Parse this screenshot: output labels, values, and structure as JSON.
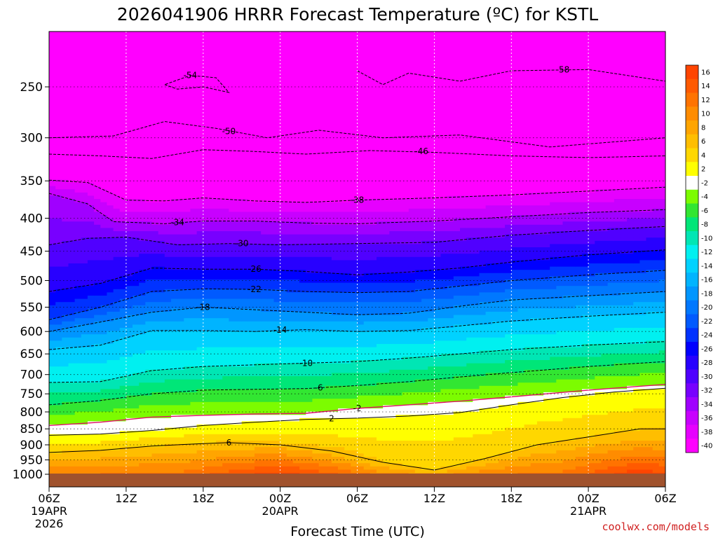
{
  "chart_data": {
    "type": "heatmap",
    "title": "2026041906 HRRR Forecast Temperature (ºC) for KSTL",
    "xlabel": "Forecast Time (UTC)",
    "ylabel": "",
    "credit": "coolwx.com/models",
    "y_scale": "log",
    "y_inverted": true,
    "y_range": [
      1025,
      201
    ],
    "y_ticks": [
      250,
      300,
      350,
      400,
      450,
      500,
      550,
      600,
      650,
      700,
      750,
      800,
      850,
      900,
      950,
      1000
    ],
    "x_range": [
      "2026-04-19 06Z",
      "2026-04-21 06Z"
    ],
    "x_ticks": [
      {
        "l1": "06Z",
        "l2": "19APR",
        "l3": "2026"
      },
      {
        "l1": "12Z",
        "l2": "",
        "l3": ""
      },
      {
        "l1": "18Z",
        "l2": "",
        "l3": ""
      },
      {
        "l1": "00Z",
        "l2": "20APR",
        "l3": ""
      },
      {
        "l1": "06Z",
        "l2": "",
        "l3": ""
      },
      {
        "l1": "12Z",
        "l2": "",
        "l3": ""
      },
      {
        "l1": "18Z",
        "l2": "",
        "l3": ""
      },
      {
        "l1": "00Z",
        "l2": "21APR",
        "l3": ""
      },
      {
        "l1": "06Z",
        "l2": "",
        "l3": ""
      }
    ],
    "grid": true,
    "legend": "colorbar-right",
    "colorbar": {
      "labels": [
        "16",
        "14",
        "12",
        "10",
        "8",
        "6",
        "4",
        "2",
        "-2",
        "-4",
        "-6",
        "-8",
        "-10",
        "-12",
        "-14",
        "-16",
        "-18",
        "-20",
        "-22",
        "-24",
        "-26",
        "-28",
        "-30",
        "-32",
        "-34",
        "-36",
        "-38",
        "-40"
      ],
      "colors": [
        "#ff4500",
        "#ff5a00",
        "#ff7300",
        "#ff8c00",
        "#ffa500",
        "#ffbe00",
        "#ffd700",
        "#ffff00",
        "#ffffff",
        "#7cfc00",
        "#32e632",
        "#00e678",
        "#00e6b4",
        "#00f0f0",
        "#00d2ff",
        "#00b4ff",
        "#0096ff",
        "#0078ff",
        "#005aff",
        "#0032ff",
        "#0000ff",
        "#2800ff",
        "#5000ff",
        "#7800ff",
        "#a000ff",
        "#c800ff",
        "#e600ff",
        "#ff00ff"
      ]
    },
    "isotherms": [
      {
        "label": "-58",
        "points": [
          [
            24,
            236
          ],
          [
            26,
            248
          ],
          [
            28,
            238
          ],
          [
            32,
            245
          ],
          [
            36,
            236
          ],
          [
            42,
            235
          ],
          [
            48,
            245
          ]
        ],
        "label_at": [
          40,
          235
        ]
      },
      {
        "label": "-54",
        "points": [
          [
            9,
            248
          ],
          [
            10,
            252
          ],
          [
            12,
            250
          ],
          [
            14,
            255
          ],
          [
            13,
            242
          ],
          [
            11,
            240
          ],
          [
            9,
            248
          ]
        ],
        "label_at": [
          11,
          240
        ]
      },
      {
        "label": "-50",
        "points": [
          [
            0,
            300
          ],
          [
            5,
            298
          ],
          [
            9,
            283
          ],
          [
            13,
            290
          ],
          [
            17,
            300
          ],
          [
            21,
            292
          ],
          [
            26,
            300
          ],
          [
            32,
            297
          ],
          [
            39,
            310
          ],
          [
            48,
            300
          ]
        ],
        "label_at": [
          14,
          293
        ]
      },
      {
        "label": "-46",
        "points": [
          [
            0,
            318
          ],
          [
            4,
            320
          ],
          [
            8,
            323
          ],
          [
            12,
            313
          ],
          [
            16,
            315
          ],
          [
            20,
            318
          ],
          [
            25,
            314
          ],
          [
            30,
            316
          ],
          [
            36,
            320
          ],
          [
            42,
            322
          ],
          [
            48,
            320
          ]
        ],
        "label_at": [
          29,
          315
        ]
      },
      {
        "label": "-38",
        "points": [
          [
            0,
            349
          ],
          [
            3,
            352
          ],
          [
            6,
            375
          ],
          [
            9,
            376
          ],
          [
            12,
            372
          ],
          [
            16,
            376
          ],
          [
            20,
            378
          ],
          [
            24,
            375
          ],
          [
            30,
            372
          ],
          [
            36,
            368
          ],
          [
            42,
            363
          ],
          [
            48,
            358
          ]
        ],
        "label_at": [
          24,
          375
        ]
      },
      {
        "label": "-34",
        "points": [
          [
            0,
            366
          ],
          [
            3,
            380
          ],
          [
            5,
            405
          ],
          [
            9,
            408
          ],
          [
            12,
            404
          ],
          [
            16,
            404
          ],
          [
            20,
            407
          ],
          [
            24,
            408
          ],
          [
            30,
            404
          ],
          [
            36,
            398
          ],
          [
            42,
            392
          ],
          [
            48,
            388
          ]
        ],
        "label_at": [
          10,
          406
        ]
      },
      {
        "label": "-30",
        "points": [
          [
            0,
            440
          ],
          [
            3,
            430
          ],
          [
            6,
            428
          ],
          [
            10,
            440
          ],
          [
            14,
            438
          ],
          [
            18,
            440
          ],
          [
            24,
            438
          ],
          [
            30,
            436
          ],
          [
            36,
            425
          ],
          [
            42,
            418
          ],
          [
            48,
            412
          ]
        ],
        "label_at": [
          15,
          438
        ]
      },
      {
        "label": "-26",
        "points": [
          [
            0,
            520
          ],
          [
            4,
            505
          ],
          [
            8,
            478
          ],
          [
            12,
            480
          ],
          [
            16,
            480
          ],
          [
            20,
            484
          ],
          [
            24,
            490
          ],
          [
            28,
            485
          ],
          [
            32,
            478
          ],
          [
            36,
            468
          ],
          [
            42,
            456
          ],
          [
            48,
            448
          ]
        ],
        "label_at": [
          16,
          480
        ]
      },
      {
        "label": "-22",
        "points": [
          [
            0,
            575
          ],
          [
            4,
            550
          ],
          [
            8,
            520
          ],
          [
            12,
            515
          ],
          [
            16,
            516
          ],
          [
            20,
            520
          ],
          [
            24,
            522
          ],
          [
            28,
            520
          ],
          [
            32,
            510
          ],
          [
            36,
            500
          ],
          [
            42,
            490
          ],
          [
            48,
            482
          ]
        ],
        "label_at": [
          16,
          516
        ]
      },
      {
        "label": "-18",
        "points": [
          [
            0,
            600
          ],
          [
            4,
            580
          ],
          [
            8,
            560
          ],
          [
            12,
            550
          ],
          [
            16,
            555
          ],
          [
            20,
            560
          ],
          [
            24,
            565
          ],
          [
            28,
            562
          ],
          [
            32,
            548
          ],
          [
            36,
            536
          ],
          [
            42,
            528
          ],
          [
            48,
            520
          ]
        ],
        "label_at": [
          12,
          550
        ]
      },
      {
        "label": "-14",
        "points": [
          [
            0,
            640
          ],
          [
            4,
            630
          ],
          [
            8,
            598
          ],
          [
            12,
            598
          ],
          [
            16,
            600
          ],
          [
            20,
            596
          ],
          [
            24,
            600
          ],
          [
            28,
            598
          ],
          [
            32,
            588
          ],
          [
            36,
            578
          ],
          [
            42,
            568
          ],
          [
            48,
            560
          ]
        ],
        "label_at": [
          18,
          597
        ]
      },
      {
        "label": "-10",
        "points": [
          [
            0,
            720
          ],
          [
            4,
            718
          ],
          [
            8,
            690
          ],
          [
            12,
            680
          ],
          [
            16,
            676
          ],
          [
            20,
            672
          ],
          [
            24,
            668
          ],
          [
            28,
            660
          ],
          [
            32,
            650
          ],
          [
            36,
            640
          ],
          [
            42,
            630
          ],
          [
            48,
            622
          ]
        ],
        "label_at": [
          20,
          672
        ]
      },
      {
        "label": "-6",
        "points": [
          [
            0,
            780
          ],
          [
            4,
            768
          ],
          [
            8,
            750
          ],
          [
            12,
            740
          ],
          [
            16,
            738
          ],
          [
            20,
            736
          ],
          [
            24,
            728
          ],
          [
            28,
            718
          ],
          [
            32,
            706
          ],
          [
            36,
            695
          ],
          [
            42,
            680
          ],
          [
            48,
            668
          ]
        ],
        "label_at": [
          21,
          734
        ]
      },
      {
        "label": "-2",
        "points": [
          [
            0,
            840
          ],
          [
            4,
            830
          ],
          [
            8,
            815
          ],
          [
            12,
            810
          ],
          [
            16,
            806
          ],
          [
            20,
            804
          ],
          [
            24,
            790
          ],
          [
            28,
            780
          ],
          [
            32,
            770
          ],
          [
            36,
            758
          ],
          [
            42,
            740
          ],
          [
            48,
            725
          ]
        ],
        "label_at": [
          24,
          790
        ]
      },
      {
        "label": "2",
        "points": [
          [
            0,
            870
          ],
          [
            4,
            866
          ],
          [
            8,
            855
          ],
          [
            12,
            840
          ],
          [
            16,
            830
          ],
          [
            20,
            822
          ],
          [
            24,
            818
          ],
          [
            28,
            812
          ],
          [
            32,
            802
          ],
          [
            36,
            780
          ],
          [
            40,
            760
          ],
          [
            44,
            745
          ],
          [
            48,
            735
          ]
        ],
        "label_at": [
          22,
          819
        ]
      },
      {
        "label": "6",
        "points": [
          [
            0,
            925
          ],
          [
            4,
            918
          ],
          [
            8,
            904
          ],
          [
            12,
            896
          ],
          [
            14,
            893
          ],
          [
            18,
            900
          ],
          [
            22,
            920
          ],
          [
            26,
            958
          ],
          [
            30,
            985
          ],
          [
            34,
            945
          ],
          [
            38,
            900
          ],
          [
            42,
            875
          ],
          [
            46,
            850
          ],
          [
            48,
            850
          ]
        ],
        "label_at": [
          14,
          893
        ]
      }
    ]
  }
}
